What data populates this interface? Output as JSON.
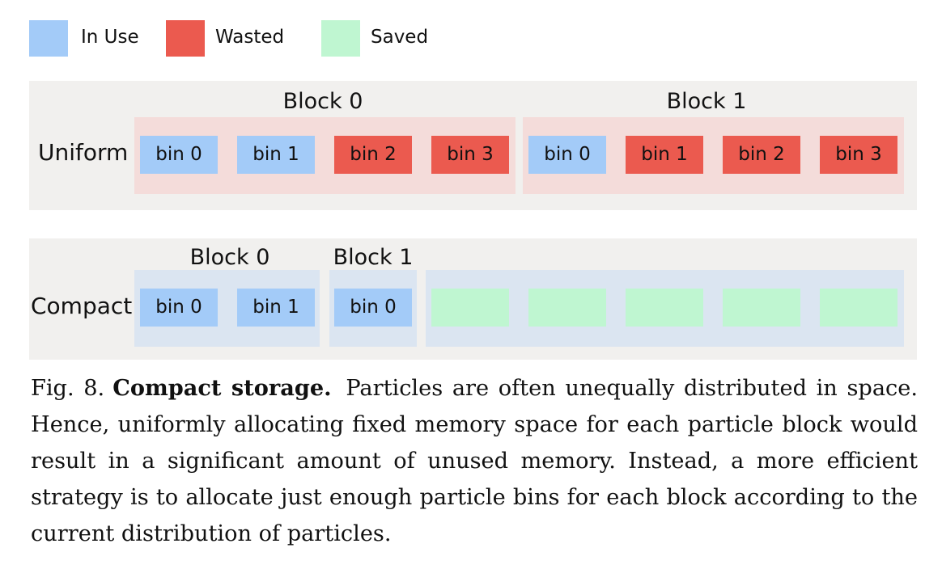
{
  "legend": [
    {
      "label": "In Use",
      "color": "#a3cbf8"
    },
    {
      "label": "Wasted",
      "color": "#eb5a4f"
    },
    {
      "label": "Saved",
      "color": "#bff6d1"
    }
  ],
  "uniform": {
    "label": "Uniform",
    "blocks": [
      {
        "title": "Block 0",
        "bins": [
          {
            "label": "bin 0",
            "status": "in-use"
          },
          {
            "label": "bin 1",
            "status": "in-use"
          },
          {
            "label": "bin 2",
            "status": "wasted"
          },
          {
            "label": "bin 3",
            "status": "wasted"
          }
        ]
      },
      {
        "title": "Block 1",
        "bins": [
          {
            "label": "bin 0",
            "status": "in-use"
          },
          {
            "label": "bin 1",
            "status": "wasted"
          },
          {
            "label": "bin 2",
            "status": "wasted"
          },
          {
            "label": "bin 3",
            "status": "wasted"
          }
        ]
      }
    ]
  },
  "compact": {
    "label": "Compact",
    "blocks": [
      {
        "title": "Block 0",
        "bins": [
          {
            "label": "bin 0",
            "status": "in-use"
          },
          {
            "label": "bin 1",
            "status": "in-use"
          }
        ]
      },
      {
        "title": "Block 1",
        "bins": [
          {
            "label": "bin 0",
            "status": "in-use"
          }
        ]
      }
    ],
    "saved_count": 5
  },
  "caption": {
    "fig": "Fig. 8.",
    "title": "Compact storage.",
    "text": "Particles are often unequally distributed in space. Hence, uniformly allocating fixed memory space for each particle block would result in a significant amount of unused memory. Instead, a more efficient strategy is to allocate just enough particle bins for each block according to the current distribution of particles."
  }
}
